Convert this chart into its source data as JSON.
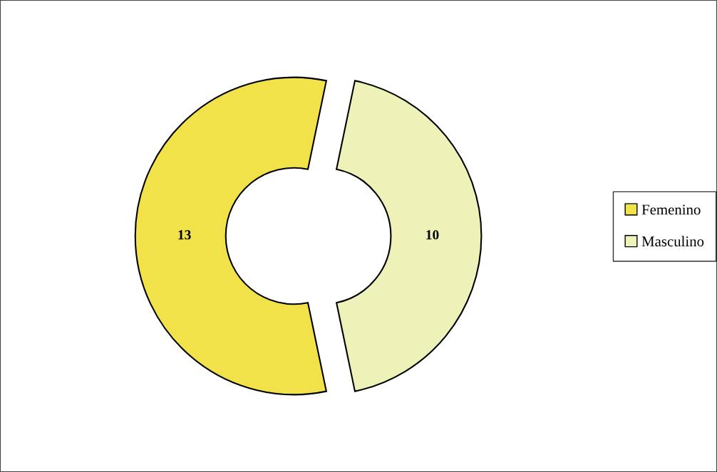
{
  "chart_data": {
    "type": "donut",
    "categories": [
      "Femenino",
      "Masculino"
    ],
    "values": [
      13,
      10
    ],
    "colors": [
      "#f2e24a",
      "#eef2b8"
    ],
    "data_labels": true,
    "legend": "right"
  }
}
